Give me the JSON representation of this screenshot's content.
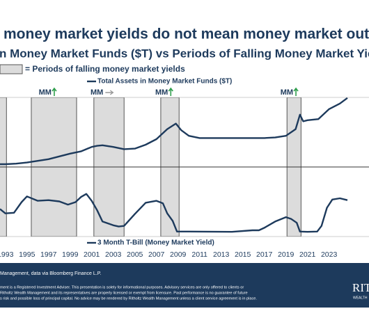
{
  "chart_data": {
    "type": "line",
    "title": "money market yields do not mean money market outflow",
    "subtitle": "n Money Market Funds ($T) vs Periods of Falling Money Market Yiel",
    "shade_legend": "= Periods of falling money market yields",
    "shaded_periods": [
      [
        1990.5,
        1993.1
      ],
      [
        1995.4,
        1999.6
      ],
      [
        2001.2,
        2004.0
      ],
      [
        2007.4,
        2009.1
      ],
      [
        2019.1,
        2020.4
      ]
    ],
    "shade_color": "#dcdcdc",
    "annotations": [
      {
        "x": 1997.4,
        "label": "MM",
        "arrow": "up"
      },
      {
        "x": 2002.2,
        "label": "MM",
        "arrow": "right"
      },
      {
        "x": 2008.2,
        "label": "MM",
        "arrow": "up"
      },
      {
        "x": 2019.8,
        "label": "MM",
        "arrow": "up"
      }
    ],
    "xlim": [
      1992.5,
      2026.7
    ],
    "xticks": [
      1993,
      1995,
      1997,
      1999,
      2001,
      2003,
      2005,
      2007,
      2009,
      2011,
      2013,
      2015,
      2017,
      2019,
      2021,
      2023
    ],
    "ylim": [
      0.3,
      7.3
    ],
    "y2lim": [
      -0.7,
      10.4
    ],
    "series": [
      {
        "name": "Total Assets in Money Market Funds ($T)",
        "color": "#1d3a5c",
        "axis": "y",
        "x": [
          1992.5,
          1993,
          1994,
          1995,
          1996,
          1997,
          1998,
          1999,
          2000,
          2001,
          2001.5,
          2002,
          2003,
          2004,
          2005,
          2006,
          2007,
          2008,
          2008.8,
          2009.3,
          2010,
          2011,
          2012,
          2013,
          2014,
          2015,
          2016,
          2017,
          2018,
          2019,
          2019.9,
          2020.3,
          2020.6,
          2021,
          2022,
          2023,
          2024,
          2024.7
        ],
        "values": [
          0.55,
          0.55,
          0.6,
          0.7,
          0.85,
          1.0,
          1.25,
          1.5,
          1.7,
          2.1,
          2.2,
          2.25,
          2.1,
          1.9,
          1.95,
          2.3,
          2.8,
          3.7,
          4.2,
          3.6,
          3.1,
          2.9,
          2.9,
          2.9,
          2.9,
          2.9,
          2.9,
          2.9,
          2.95,
          3.1,
          3.7,
          5.0,
          4.4,
          4.5,
          4.6,
          5.5,
          6.0,
          6.5
        ]
      },
      {
        "name": "3 Month T-Bill (Money Market Yield)",
        "color": "#1d3a5c",
        "axis": "y2",
        "x": [
          1992.5,
          1993,
          1993.8,
          1994.5,
          1995,
          1996,
          1997,
          1998,
          1998.8,
          1999.5,
          2000,
          2000.5,
          2001,
          2001.5,
          2002,
          2003,
          2003.5,
          2004,
          2005,
          2006,
          2007,
          2007.6,
          2008,
          2008.5,
          2008.9,
          2009,
          2010,
          2014,
          2015.9,
          2016.5,
          2017,
          2018,
          2019,
          2019.5,
          2020,
          2020.3,
          2021,
          2021.9,
          2022.3,
          2022.8,
          2023.3,
          2024,
          2024.7
        ],
        "values": [
          3.7,
          3.0,
          3.1,
          4.8,
          5.7,
          5.0,
          5.1,
          4.9,
          4.4,
          4.8,
          5.6,
          6.1,
          5.0,
          3.5,
          1.7,
          1.1,
          0.9,
          1.0,
          2.9,
          4.7,
          5.0,
          4.6,
          3.0,
          1.8,
          0.1,
          0.1,
          0.1,
          0.05,
          0.3,
          0.3,
          0.7,
          1.7,
          2.4,
          2.1,
          1.5,
          0.1,
          0.05,
          0.1,
          1.0,
          3.9,
          5.2,
          5.4,
          5.1
        ]
      }
    ],
    "source": "Management, data via Bloomberg Finance L.P.",
    "disclaimer": [
      "ment is a Registered Investment Adviser. This presentation is solely for informational purposes. Advisory services are only offered to clients or",
      "Ritholtz Wealth Management and its representatives are properly licensed or exempt from licensure. Past performance is no guarantee of future",
      "s risk and possible loss of principal capital. No advice may be rendered by Ritholtz Wealth Management unless a client service agreement is in place."
    ],
    "logo": "RIT",
    "logo_sub": "WEALTH"
  }
}
